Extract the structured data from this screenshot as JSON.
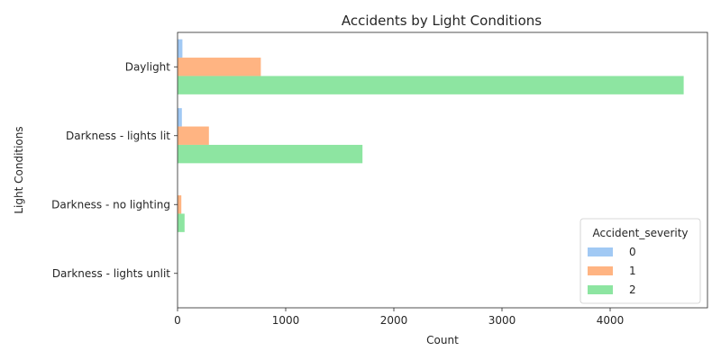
{
  "chart_data": {
    "type": "bar",
    "orientation": "horizontal",
    "title": "Accidents by Light Conditions",
    "xlabel": "Count",
    "ylabel": "Light Conditions",
    "categories": [
      "Daylight",
      "Darkness - lights lit",
      "Darkness - no lighting",
      "Darkness - lights unlit"
    ],
    "xlim": [
      0,
      4900
    ],
    "xticks": [
      0,
      1000,
      2000,
      3000,
      4000
    ],
    "grid": false,
    "legend": {
      "title": "Accident_severity",
      "placement": "lower-right"
    },
    "series": [
      {
        "name": "0",
        "color": "#a1c9f4",
        "values": [
          45,
          40,
          0,
          0
        ]
      },
      {
        "name": "1",
        "color": "#ffb482",
        "values": [
          770,
          290,
          35,
          0
        ]
      },
      {
        "name": "2",
        "color": "#8de5a1",
        "values": [
          4680,
          1710,
          65,
          0
        ]
      }
    ]
  }
}
